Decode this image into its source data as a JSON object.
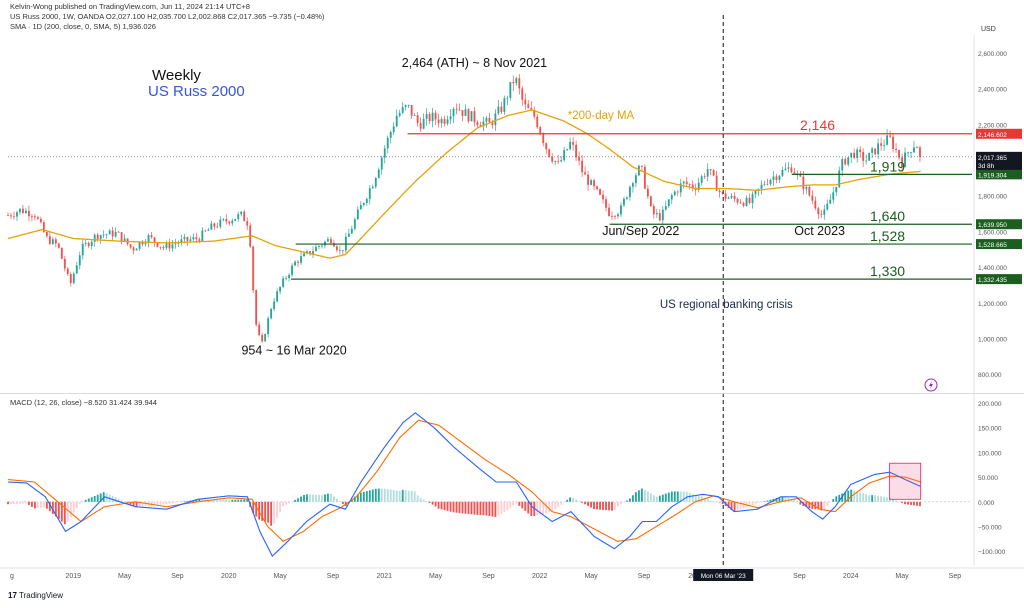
{
  "header": {
    "publisher": "Kelvin-Wong published on TradingView.com, Jun 11, 2024 21:14 UTC+8",
    "ohlc": "US Russ 2000, 1W, OANDA  O2,027.100  H2,035.700  L2,002.868  C2,017.365  −9.735 (−0.48%)",
    "sma": "SMA · 1D (200, close, 0, SMA, 5)  1,936.026",
    "currency": "USD",
    "macd": "MACD (12, 26, close)  −8.520  31.424  39.944"
  },
  "footer": {
    "brand": "TradingView"
  },
  "colors": {
    "up": "#26a69a",
    "down": "#ef5350",
    "sma": "#e5a20a",
    "macd": "#2962ff",
    "signal": "#ff6d00",
    "support": "#1b5e20",
    "resistance": "#e53935",
    "event": "#131722",
    "title": "#3955d8"
  },
  "chart_data": [
    {
      "type": "candlestick",
      "title": "Weekly",
      "subtitle": "US Russ 2000",
      "ylim": [
        700,
        2700
      ],
      "y_ticks": [
        800,
        1000,
        1200,
        1400,
        1600,
        1800,
        2000,
        2200,
        2400,
        2600
      ],
      "y_tick_labels": [
        "800.000",
        "1,000.000",
        "1,200.000",
        "1,400.000",
        "1,600.000",
        "1,800.000",
        "2,000.000",
        "2,200.000",
        "2,400.000",
        "2,600.000"
      ],
      "x_ticks": [
        {
          "label": "2019",
          "t": 2019.0
        },
        {
          "label": "May",
          "t": 2019.33
        },
        {
          "label": "Sep",
          "t": 2019.67
        },
        {
          "label": "2020",
          "t": 2020.0
        },
        {
          "label": "May",
          "t": 2020.33
        },
        {
          "label": "Sep",
          "t": 2020.67
        },
        {
          "label": "2021",
          "t": 2021.0
        },
        {
          "label": "May",
          "t": 2021.33
        },
        {
          "label": "Sep",
          "t": 2021.67
        },
        {
          "label": "2022",
          "t": 2022.0
        },
        {
          "label": "May",
          "t": 2022.33
        },
        {
          "label": "Sep",
          "t": 2022.67
        },
        {
          "label": "May",
          "t": 2023.33
        },
        {
          "label": "Sep",
          "t": 2023.67
        },
        {
          "label": "2024",
          "t": 2024.0
        },
        {
          "label": "May",
          "t": 2024.33
        },
        {
          "label": "Sep",
          "t": 2024.67
        }
      ],
      "x_edge_labels": {
        "left": "g",
        "left_t": 2018.58,
        "partial": "20",
        "partial_t": 2022.98
      },
      "price_path": [
        [
          2018.58,
          1690
        ],
        [
          2018.66,
          1720
        ],
        [
          2018.75,
          1700
        ],
        [
          2018.83,
          1560
        ],
        [
          2018.9,
          1520
        ],
        [
          2018.98,
          1300
        ],
        [
          2019.05,
          1500
        ],
        [
          2019.15,
          1580
        ],
        [
          2019.28,
          1590
        ],
        [
          2019.38,
          1500
        ],
        [
          2019.48,
          1570
        ],
        [
          2019.58,
          1510
        ],
        [
          2019.68,
          1540
        ],
        [
          2019.8,
          1560
        ],
        [
          2019.9,
          1630
        ],
        [
          2020.0,
          1665
        ],
        [
          2020.08,
          1690
        ],
        [
          2020.13,
          1640
        ],
        [
          2020.17,
          1100
        ],
        [
          2020.21,
          954
        ],
        [
          2020.28,
          1200
        ],
        [
          2020.35,
          1320
        ],
        [
          2020.43,
          1430
        ],
        [
          2020.5,
          1470
        ],
        [
          2020.58,
          1520
        ],
        [
          2020.66,
          1560
        ],
        [
          2020.72,
          1480
        ],
        [
          2020.78,
          1600
        ],
        [
          2020.85,
          1740
        ],
        [
          2020.93,
          1880
        ],
        [
          2021.0,
          2060
        ],
        [
          2021.08,
          2250
        ],
        [
          2021.15,
          2300
        ],
        [
          2021.22,
          2200
        ],
        [
          2021.3,
          2240
        ],
        [
          2021.38,
          2220
        ],
        [
          2021.45,
          2310
        ],
        [
          2021.52,
          2260
        ],
        [
          2021.6,
          2220
        ],
        [
          2021.68,
          2200
        ],
        [
          2021.76,
          2300
        ],
        [
          2021.84,
          2464
        ],
        [
          2021.9,
          2300
        ],
        [
          2021.97,
          2240
        ],
        [
          2022.05,
          2050
        ],
        [
          2022.12,
          1970
        ],
        [
          2022.2,
          2100
        ],
        [
          2022.28,
          1920
        ],
        [
          2022.38,
          1800
        ],
        [
          2022.45,
          1700
        ],
        [
          2022.52,
          1720
        ],
        [
          2022.6,
          1900
        ],
        [
          2022.65,
          1960
        ],
        [
          2022.72,
          1700
        ],
        [
          2022.78,
          1680
        ],
        [
          2022.85,
          1800
        ],
        [
          2022.92,
          1870
        ],
        [
          2023.0,
          1850
        ],
        [
          2023.08,
          1950
        ],
        [
          2023.17,
          1800
        ],
        [
          2023.25,
          1780
        ],
        [
          2023.35,
          1760
        ],
        [
          2023.45,
          1880
        ],
        [
          2023.55,
          1930
        ],
        [
          2023.62,
          1960
        ],
        [
          2023.68,
          1880
        ],
        [
          2023.75,
          1780
        ],
        [
          2023.82,
          1680
        ],
        [
          2023.88,
          1800
        ],
        [
          2023.95,
          1990
        ],
        [
          2024.02,
          2040
        ],
        [
          2024.1,
          2000
        ],
        [
          2024.18,
          2080
        ],
        [
          2024.25,
          2120
        ],
        [
          2024.33,
          1990
        ],
        [
          2024.38,
          2060
        ],
        [
          2024.42,
          2100
        ],
        [
          2024.45,
          2017
        ]
      ],
      "sma_path": [
        [
          2018.58,
          1560
        ],
        [
          2018.8,
          1610
        ],
        [
          2019.0,
          1560
        ],
        [
          2019.3,
          1545
        ],
        [
          2019.6,
          1535
        ],
        [
          2019.9,
          1545
        ],
        [
          2020.15,
          1575
        ],
        [
          2020.3,
          1520
        ],
        [
          2020.5,
          1480
        ],
        [
          2020.65,
          1450
        ],
        [
          2020.75,
          1470
        ],
        [
          2020.85,
          1560
        ],
        [
          2021.0,
          1700
        ],
        [
          2021.2,
          1880
        ],
        [
          2021.4,
          2040
        ],
        [
          2021.6,
          2180
        ],
        [
          2021.8,
          2250
        ],
        [
          2021.95,
          2280
        ],
        [
          2022.15,
          2220
        ],
        [
          2022.3,
          2150
        ],
        [
          2022.45,
          2060
        ],
        [
          2022.6,
          1960
        ],
        [
          2022.8,
          1880
        ],
        [
          2023.0,
          1840
        ],
        [
          2023.2,
          1840
        ],
        [
          2023.4,
          1830
        ],
        [
          2023.6,
          1850
        ],
        [
          2023.75,
          1860
        ],
        [
          2023.9,
          1860
        ],
        [
          2024.05,
          1890
        ],
        [
          2024.25,
          1920
        ],
        [
          2024.45,
          1936
        ]
      ],
      "levels": [
        {
          "name": "resistance-2146",
          "value": 2146.602,
          "label": "2,146",
          "axis_label": "2,146.602",
          "kind": "resistance",
          "from_t": 2021.15
        },
        {
          "name": "support-1919",
          "value": 1919.304,
          "label": "1,919",
          "axis_label": "1,919.304",
          "kind": "support",
          "from_t": 2023.62
        },
        {
          "name": "support-1640",
          "value": 1639.95,
          "label": "1,640",
          "axis_label": "1,639.950",
          "kind": "support",
          "from_t": 2022.45
        },
        {
          "name": "support-1528",
          "value": 1528.665,
          "label": "1,528",
          "axis_label": "1,528.665",
          "kind": "support",
          "from_t": 2020.43
        },
        {
          "name": "support-1330",
          "value": 1332.435,
          "label": "1,330",
          "axis_label": "1,332.435",
          "kind": "support",
          "from_t": 2020.4
        }
      ],
      "current_price": {
        "value": 2017.365,
        "label": "2,017.365",
        "countdown": "3d 8h"
      },
      "annotations": [
        {
          "name": "ath-annotation",
          "text": "2,464 (ATH) ~ 8 Nov 2021",
          "t": 2021.58,
          "y": 2520
        },
        {
          "name": "low-annotation",
          "text": "954 ~ 16 Mar 2020",
          "t": 2020.42,
          "y": 910
        },
        {
          "name": "sma-annotation",
          "text": "*200-day MA",
          "t": 2022.18,
          "y": 2230
        },
        {
          "name": "junsep-annotation",
          "text": "Jun/Sep 2022",
          "t": 2022.65,
          "y": 1580
        },
        {
          "name": "oct2023-annotation",
          "text": "Oct 2023",
          "t": 2023.8,
          "y": 1580
        },
        {
          "name": "banking-annotation",
          "text": "US regional banking crisis",
          "t": 2023.2,
          "y": 1170
        }
      ],
      "event_line": {
        "t": 2023.18,
        "label": "Mon 06 Mar '23"
      }
    },
    {
      "type": "macd",
      "title": "MACD (12, 26, close)",
      "ylim": [
        -130,
        210
      ],
      "y_ticks": [
        -100,
        -50,
        0,
        50,
        100,
        150,
        200
      ],
      "y_tick_labels": [
        "−100.000",
        "−50.000",
        "0.000",
        "50.000",
        "100.000",
        "150.000",
        "200.000"
      ],
      "macd_path": [
        [
          2018.58,
          40
        ],
        [
          2018.7,
          38
        ],
        [
          2018.82,
          10
        ],
        [
          2018.95,
          -60
        ],
        [
          2019.05,
          -40
        ],
        [
          2019.2,
          10
        ],
        [
          2019.4,
          -10
        ],
        [
          2019.6,
          -15
        ],
        [
          2019.8,
          5
        ],
        [
          2020.0,
          12
        ],
        [
          2020.12,
          10
        ],
        [
          2020.2,
          -60
        ],
        [
          2020.28,
          -110
        ],
        [
          2020.38,
          -80
        ],
        [
          2020.5,
          -40
        ],
        [
          2020.65,
          -5
        ],
        [
          2020.75,
          -15
        ],
        [
          2020.85,
          40
        ],
        [
          2021.0,
          110
        ],
        [
          2021.12,
          160
        ],
        [
          2021.2,
          180
        ],
        [
          2021.32,
          150
        ],
        [
          2021.45,
          110
        ],
        [
          2021.6,
          70
        ],
        [
          2021.72,
          40
        ],
        [
          2021.85,
          40
        ],
        [
          2021.95,
          -10
        ],
        [
          2022.08,
          -40
        ],
        [
          2022.2,
          -20
        ],
        [
          2022.35,
          -70
        ],
        [
          2022.48,
          -95
        ],
        [
          2022.58,
          -70
        ],
        [
          2022.66,
          -40
        ],
        [
          2022.75,
          -40
        ],
        [
          2022.85,
          -10
        ],
        [
          2022.95,
          10
        ],
        [
          2023.05,
          15
        ],
        [
          2023.15,
          10
        ],
        [
          2023.25,
          -20
        ],
        [
          2023.4,
          -15
        ],
        [
          2023.55,
          10
        ],
        [
          2023.65,
          10
        ],
        [
          2023.75,
          -20
        ],
        [
          2023.82,
          -35
        ],
        [
          2023.9,
          -10
        ],
        [
          2024.0,
          35
        ],
        [
          2024.15,
          55
        ],
        [
          2024.25,
          60
        ],
        [
          2024.35,
          45
        ],
        [
          2024.45,
          31
        ]
      ],
      "signal_path": [
        [
          2018.58,
          45
        ],
        [
          2018.75,
          40
        ],
        [
          2018.9,
          0
        ],
        [
          2019.05,
          -40
        ],
        [
          2019.2,
          -10
        ],
        [
          2019.4,
          0
        ],
        [
          2019.6,
          -10
        ],
        [
          2019.8,
          0
        ],
        [
          2020.0,
          8
        ],
        [
          2020.15,
          5
        ],
        [
          2020.25,
          -50
        ],
        [
          2020.35,
          -80
        ],
        [
          2020.48,
          -60
        ],
        [
          2020.6,
          -30
        ],
        [
          2020.72,
          -12
        ],
        [
          2020.82,
          10
        ],
        [
          2020.95,
          60
        ],
        [
          2021.1,
          130
        ],
        [
          2021.22,
          165
        ],
        [
          2021.35,
          155
        ],
        [
          2021.5,
          120
        ],
        [
          2021.65,
          85
        ],
        [
          2021.8,
          55
        ],
        [
          2021.95,
          20
        ],
        [
          2022.08,
          -20
        ],
        [
          2022.2,
          -30
        ],
        [
          2022.35,
          -55
        ],
        [
          2022.5,
          -80
        ],
        [
          2022.62,
          -75
        ],
        [
          2022.75,
          -50
        ],
        [
          2022.88,
          -25
        ],
        [
          2023.0,
          0
        ],
        [
          2023.12,
          12
        ],
        [
          2023.25,
          0
        ],
        [
          2023.4,
          -12
        ],
        [
          2023.55,
          0
        ],
        [
          2023.68,
          8
        ],
        [
          2023.8,
          -15
        ],
        [
          2023.9,
          -20
        ],
        [
          2024.0,
          10
        ],
        [
          2024.12,
          38
        ],
        [
          2024.25,
          52
        ],
        [
          2024.35,
          50
        ],
        [
          2024.45,
          40
        ]
      ],
      "highlight_box": {
        "t0": 2024.25,
        "t1": 2024.45,
        "y0": 5,
        "y1": 78
      }
    }
  ]
}
